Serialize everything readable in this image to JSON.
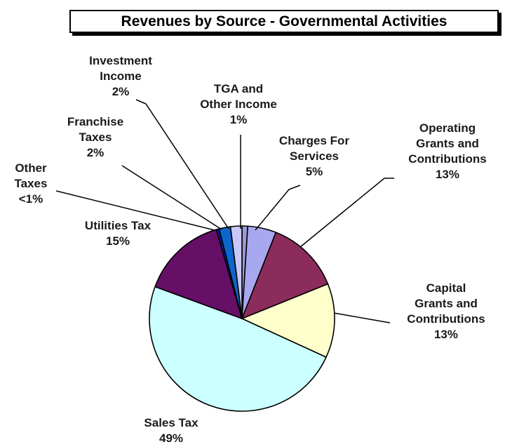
{
  "chart_data": {
    "type": "pie",
    "title": "Revenues by Source - Governmental Activities",
    "slices": [
      {
        "id": "tga",
        "name": "TGA and Other Income",
        "value": 1,
        "label_lines": [
          "TGA and",
          "Other Income",
          "1%"
        ],
        "color": "#9a9ad8"
      },
      {
        "id": "charges",
        "name": "Charges For Services",
        "value": 5,
        "label_lines": [
          "Charges For",
          "Services",
          "5%"
        ],
        "color": "#a8a8f0"
      },
      {
        "id": "opgrants",
        "name": "Operating Grants and Contributions",
        "value": 13,
        "label_lines": [
          "Operating",
          "Grants and",
          "Contributions",
          "13%"
        ],
        "color": "#8c2c5c"
      },
      {
        "id": "capgrants",
        "name": "Capital Grants and Contributions",
        "value": 13,
        "label_lines": [
          "Capital",
          "Grants and",
          "Contributions",
          "13%"
        ],
        "color": "#ffffcc"
      },
      {
        "id": "sales",
        "name": "Sales Tax",
        "value": 49,
        "label_lines": [
          "Sales Tax",
          "49%"
        ],
        "color": "#ccffff"
      },
      {
        "id": "utilities",
        "name": "Utilities Tax",
        "value": 15,
        "label_lines": [
          "Utilities Tax",
          "15%"
        ],
        "color": "#660f66"
      },
      {
        "id": "othertax",
        "name": "Other Taxes",
        "value": 0.5,
        "label_lines": [
          "Other",
          "Taxes",
          "<1%"
        ],
        "color": "#0d1a99"
      },
      {
        "id": "franchise",
        "name": "Franchise Taxes",
        "value": 2,
        "label_lines": [
          "Franchise",
          "Taxes",
          "2%"
        ],
        "color": "#0d66cc"
      },
      {
        "id": "investment",
        "name": "Investment Income",
        "value": 2,
        "label_lines": [
          "Investment",
          "Income",
          "2%"
        ],
        "color": "#c8c8f8"
      }
    ]
  }
}
